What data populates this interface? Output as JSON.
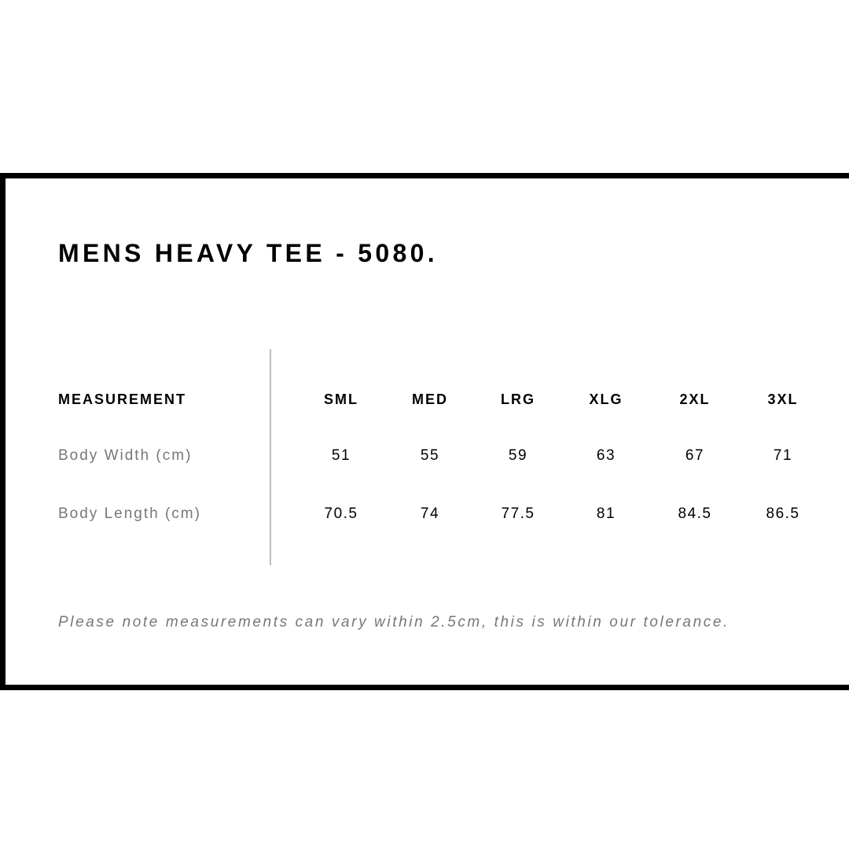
{
  "title": "MENS HEAVY TEE - 5080.",
  "table": {
    "header_label": "MEASUREMENT",
    "columns": [
      "SML",
      "MED",
      "LRG",
      "XLG",
      "2XL",
      "3XL"
    ],
    "rows": [
      {
        "label": "Body Width (cm)",
        "values": [
          "51",
          "55",
          "59",
          "63",
          "67",
          "71"
        ]
      },
      {
        "label": "Body Length (cm)",
        "values": [
          "70.5",
          "74",
          "77.5",
          "81",
          "84.5",
          "86.5"
        ]
      }
    ]
  },
  "note": "Please note measurements can vary within 2.5cm, this is within our tolerance.",
  "colors": {
    "border": "#000000",
    "label_text": "#777777",
    "divider": "#bdbdbd"
  }
}
